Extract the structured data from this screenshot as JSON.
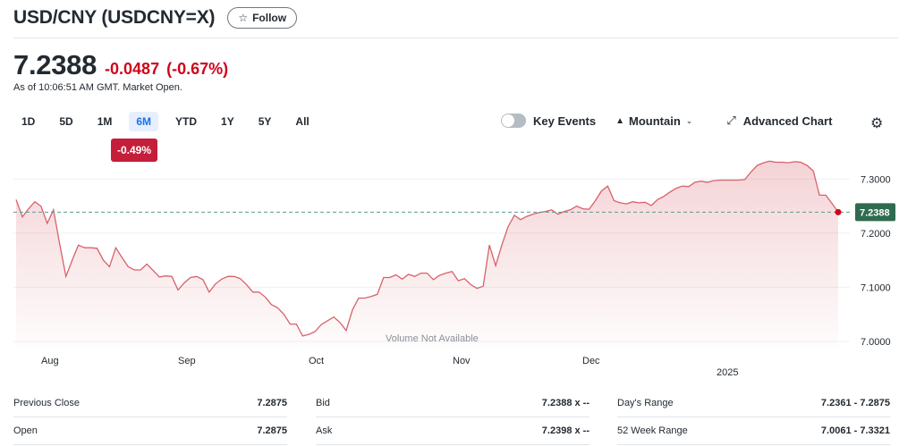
{
  "header": {
    "title": "USD/CNY (USDCNY=X)",
    "follow_label": "Follow",
    "follow_icon": "star-icon"
  },
  "quote": {
    "price": "7.2388",
    "change": "-0.0487",
    "change_pct": "(-0.67%)",
    "as_of": "As of 10:06:51 AM GMT. Market Open."
  },
  "ranges": {
    "items": [
      "1D",
      "5D",
      "1M",
      "6M",
      "YTD",
      "1Y",
      "5Y",
      "All"
    ],
    "active": "6M",
    "period_change": "-0.49%"
  },
  "controls": {
    "key_events_label": "Key Events",
    "key_events_on": false,
    "chart_type_label": "Mountain",
    "advanced_label": "Advanced Chart"
  },
  "colors": {
    "line": "#d8616b",
    "negative": "#d0021b",
    "badge": "#c41e3a",
    "current_tag": "#2f6b4f",
    "baseline": "#5e9a8f",
    "active_range": "#1a73e8"
  },
  "chart_data": {
    "type": "area",
    "y_ticks": [
      "7.3000",
      "7.2000",
      "7.1000",
      "7.0000"
    ],
    "ylim": [
      6.99,
      7.35
    ],
    "x_ticks": [
      "Aug",
      "Sep",
      "Oct",
      "Nov",
      "Dec",
      "2025"
    ],
    "current_label": "7.2388",
    "current_value": 7.2388,
    "baseline_value": 7.2388,
    "annotation": "Volume Not Available",
    "values": [
      7.262,
      7.23,
      7.245,
      7.258,
      7.25,
      7.218,
      7.243,
      7.18,
      7.12,
      7.15,
      7.178,
      7.173,
      7.173,
      7.172,
      7.15,
      7.138,
      7.173,
      7.155,
      7.138,
      7.132,
      7.132,
      7.143,
      7.131,
      7.119,
      7.121,
      7.12,
      7.095,
      7.108,
      7.118,
      7.12,
      7.114,
      7.091,
      7.106,
      7.115,
      7.12,
      7.12,
      7.116,
      7.105,
      7.091,
      7.091,
      7.082,
      7.068,
      7.062,
      7.05,
      7.032,
      7.032,
      7.01,
      7.013,
      7.018,
      7.031,
      7.038,
      7.045,
      7.035,
      7.02,
      7.058,
      7.08,
      7.08,
      7.083,
      7.087,
      7.118,
      7.118,
      7.123,
      7.115,
      7.124,
      7.12,
      7.126,
      7.126,
      7.114,
      7.122,
      7.126,
      7.129,
      7.112,
      7.116,
      7.105,
      7.098,
      7.102,
      7.178,
      7.14,
      7.178,
      7.212,
      7.233,
      7.225,
      7.231,
      7.235,
      7.238,
      7.24,
      7.243,
      7.235,
      7.24,
      7.243,
      7.25,
      7.245,
      7.244,
      7.26,
      7.278,
      7.287,
      7.26,
      7.256,
      7.254,
      7.258,
      7.256,
      7.257,
      7.251,
      7.262,
      7.268,
      7.276,
      7.283,
      7.287,
      7.286,
      7.294,
      7.296,
      7.294,
      7.297,
      7.298,
      7.298,
      7.298,
      7.298,
      7.299,
      7.313,
      7.325,
      7.33,
      7.333,
      7.331,
      7.331,
      7.33,
      7.332,
      7.331,
      7.325,
      7.315,
      7.27,
      7.27,
      7.255,
      7.2388
    ]
  },
  "stats": {
    "rows": [
      {
        "c1_label": "Previous Close",
        "c1_value": "7.2875",
        "c2_label": "Bid",
        "c2_value": "7.2388 x --",
        "c3_label": "Day's Range",
        "c3_value": "7.2361 - 7.2875"
      },
      {
        "c1_label": "Open",
        "c1_value": "7.2875",
        "c2_label": "Ask",
        "c2_value": "7.2398 x --",
        "c3_label": "52 Week Range",
        "c3_value": "7.0061 - 7.3321"
      }
    ]
  }
}
